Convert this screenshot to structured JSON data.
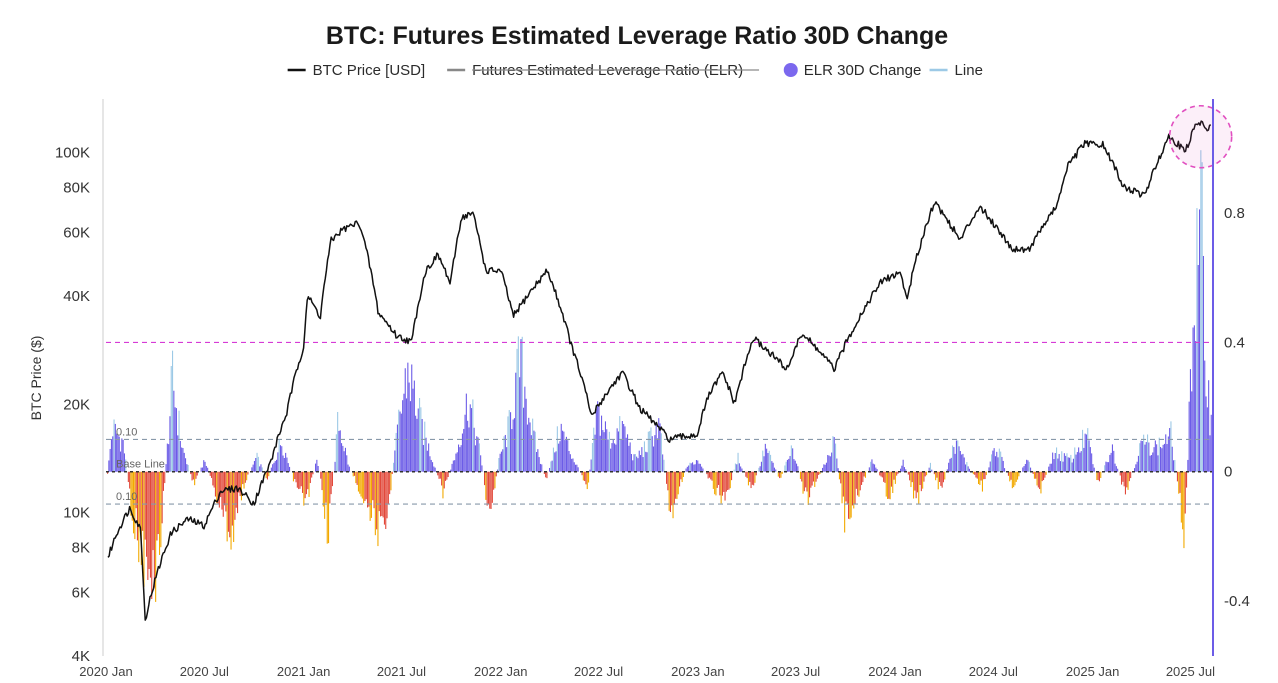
{
  "chart_data": {
    "type": "line+bar",
    "title": "BTC: Futures Estimated Leverage Ratio 30D Change",
    "legend": {
      "placement": "top-center",
      "items": [
        {
          "label": "BTC Price [USD]",
          "kind": "line",
          "color": "#111111",
          "struck": false
        },
        {
          "label": "Futures Estimated Leverage Ratio (ELR)",
          "kind": "line",
          "color": "#888888",
          "struck": true
        },
        {
          "label": "ELR 30D Change",
          "kind": "dot",
          "color": "#7b68ee",
          "struck": false
        },
        {
          "label": "Line",
          "kind": "line",
          "color": "#9cc9e6",
          "struck": false
        }
      ]
    },
    "y_left": {
      "label": "BTC Price ($)",
      "scale": "log",
      "range": [
        4000,
        140000
      ],
      "ticks": [
        {
          "value": 4000,
          "label": "4K"
        },
        {
          "value": 6000,
          "label": "6K"
        },
        {
          "value": 8000,
          "label": "8K"
        },
        {
          "value": 10000,
          "label": "10K"
        },
        {
          "value": 20000,
          "label": "20K"
        },
        {
          "value": 40000,
          "label": "40K"
        },
        {
          "value": 60000,
          "label": "60K"
        },
        {
          "value": 80000,
          "label": "80K"
        },
        {
          "value": 100000,
          "label": "100K"
        }
      ]
    },
    "y_right": {
      "scale": "linear",
      "range": [
        -0.57,
        1.15
      ],
      "ticks": [
        {
          "value": -0.4,
          "label": "-0.4"
        },
        {
          "value": 0,
          "label": "0"
        },
        {
          "value": 0.4,
          "label": "0.4"
        },
        {
          "value": 0.8,
          "label": "0.8"
        }
      ]
    },
    "x_axis": {
      "range": [
        "2020-01-01",
        "2025-08-10"
      ],
      "ticks": [
        {
          "date": "2020-01-01",
          "label": "2020 Jan"
        },
        {
          "date": "2020-07-01",
          "label": "2020 Jul"
        },
        {
          "date": "2021-01-01",
          "label": "2021 Jan"
        },
        {
          "date": "2021-07-01",
          "label": "2021 Jul"
        },
        {
          "date": "2022-01-01",
          "label": "2022 Jan"
        },
        {
          "date": "2022-07-01",
          "label": "2022 Jul"
        },
        {
          "date": "2023-01-01",
          "label": "2023 Jan"
        },
        {
          "date": "2023-07-01",
          "label": "2023 Jul"
        },
        {
          "date": "2024-01-01",
          "label": "2024 Jan"
        },
        {
          "date": "2024-07-01",
          "label": "2024 Jul"
        },
        {
          "date": "2025-01-01",
          "label": "2025 Jan"
        },
        {
          "date": "2025-07-01",
          "label": "2025 Jul"
        }
      ]
    },
    "reference_lines": [
      {
        "value": 0.4,
        "style": "dashed",
        "color": "#d63bd6",
        "label": ""
      },
      {
        "value": 0.1,
        "style": "dashed",
        "color": "#8899aa",
        "label": "0.10"
      },
      {
        "value": 0,
        "style": "dashed",
        "color": "#333333",
        "label": "Base Line"
      },
      {
        "value": -0.1,
        "style": "dashed",
        "color": "#8899aa",
        "label": "0.10"
      }
    ],
    "highlight": {
      "date": "2025-07-20",
      "value": 115000,
      "shape": "dashed-circle",
      "color": "#e14fc0"
    },
    "colors": {
      "price": "#111111",
      "positive": "#6c5ce7",
      "positive_edge": "#9cc9e6",
      "negative": "#e2483a",
      "negative_edge": "#f2a900"
    },
    "series": [
      {
        "name": "BTC Price [USD]",
        "points": [
          [
            "2020-01-01",
            7200
          ],
          [
            "2020-01-20",
            8700
          ],
          [
            "2020-02-14",
            10300
          ],
          [
            "2020-03-05",
            9000
          ],
          [
            "2020-03-13",
            5000
          ],
          [
            "2020-04-01",
            6500
          ],
          [
            "2020-05-01",
            8800
          ],
          [
            "2020-06-01",
            9600
          ],
          [
            "2020-07-01",
            9200
          ],
          [
            "2020-08-01",
            11500
          ],
          [
            "2020-09-01",
            11700
          ],
          [
            "2020-10-01",
            10600
          ],
          [
            "2020-11-01",
            13800
          ],
          [
            "2020-12-01",
            19000
          ],
          [
            "2021-01-01",
            29000
          ],
          [
            "2021-01-08",
            40000
          ],
          [
            "2021-02-01",
            35000
          ],
          [
            "2021-02-21",
            57000
          ],
          [
            "2021-03-13",
            61000
          ],
          [
            "2021-04-14",
            64000
          ],
          [
            "2021-05-19",
            36000
          ],
          [
            "2021-06-22",
            31000
          ],
          [
            "2021-07-20",
            29800
          ],
          [
            "2021-08-15",
            47000
          ],
          [
            "2021-09-07",
            52000
          ],
          [
            "2021-09-30",
            43000
          ],
          [
            "2021-10-20",
            66000
          ],
          [
            "2021-11-10",
            68000
          ],
          [
            "2021-12-04",
            47000
          ],
          [
            "2022-01-01",
            47000
          ],
          [
            "2022-01-24",
            35000
          ],
          [
            "2022-03-28",
            47000
          ],
          [
            "2022-05-12",
            29000
          ],
          [
            "2022-06-18",
            18500
          ],
          [
            "2022-08-14",
            24500
          ],
          [
            "2022-09-15",
            19500
          ],
          [
            "2022-11-09",
            16000
          ],
          [
            "2022-12-31",
            16500
          ],
          [
            "2023-01-20",
            21000
          ],
          [
            "2023-02-16",
            24500
          ],
          [
            "2023-03-10",
            20000
          ],
          [
            "2023-04-14",
            30500
          ],
          [
            "2023-06-15",
            25000
          ],
          [
            "2023-07-13",
            31500
          ],
          [
            "2023-09-11",
            25000
          ],
          [
            "2023-10-25",
            34500
          ],
          [
            "2023-12-08",
            44000
          ],
          [
            "2024-01-11",
            46500
          ],
          [
            "2024-01-23",
            39000
          ],
          [
            "2024-03-14",
            73000
          ],
          [
            "2024-05-01",
            57000
          ],
          [
            "2024-06-05",
            71000
          ],
          [
            "2024-08-05",
            54000
          ],
          [
            "2024-09-06",
            54000
          ],
          [
            "2024-10-29",
            72000
          ],
          [
            "2024-11-13",
            90000
          ],
          [
            "2024-12-17",
            106000
          ],
          [
            "2025-01-20",
            105000
          ],
          [
            "2025-02-28",
            80000
          ],
          [
            "2025-04-08",
            76000
          ],
          [
            "2025-05-22",
            111000
          ],
          [
            "2025-06-22",
            101000
          ],
          [
            "2025-07-14",
            122000
          ],
          [
            "2025-07-28",
            118000
          ],
          [
            "2025-08-08",
            117000
          ]
        ]
      },
      {
        "name": "ELR 30D Change",
        "points": [
          [
            "2020-01-01",
            -0.05
          ],
          [
            "2020-01-12",
            0.18
          ],
          [
            "2020-02-01",
            0.12
          ],
          [
            "2020-02-18",
            -0.18
          ],
          [
            "2020-03-13",
            -0.38
          ],
          [
            "2020-03-25",
            -0.5
          ],
          [
            "2020-04-12",
            -0.22
          ],
          [
            "2020-05-02",
            0.38
          ],
          [
            "2020-05-20",
            0.1
          ],
          [
            "2020-06-10",
            -0.05
          ],
          [
            "2020-07-01",
            0.05
          ],
          [
            "2020-07-25",
            -0.12
          ],
          [
            "2020-08-20",
            -0.26
          ],
          [
            "2020-09-10",
            -0.06
          ],
          [
            "2020-10-05",
            0.06
          ],
          [
            "2020-10-25",
            -0.03
          ],
          [
            "2020-11-20",
            0.13
          ],
          [
            "2020-12-15",
            -0.05
          ],
          [
            "2021-01-05",
            -0.12
          ],
          [
            "2021-01-25",
            0.06
          ],
          [
            "2021-02-15",
            -0.25
          ],
          [
            "2021-03-05",
            0.21
          ],
          [
            "2021-03-25",
            0.02
          ],
          [
            "2021-04-20",
            -0.1
          ],
          [
            "2021-05-10",
            -0.18
          ],
          [
            "2021-05-28",
            -0.3
          ],
          [
            "2021-06-25",
            0.2
          ],
          [
            "2021-07-12",
            0.42
          ],
          [
            "2021-08-05",
            0.2
          ],
          [
            "2021-08-25",
            0.06
          ],
          [
            "2021-09-15",
            -0.08
          ],
          [
            "2021-10-10",
            0.08
          ],
          [
            "2021-11-01",
            0.3
          ],
          [
            "2021-11-25",
            0.05
          ],
          [
            "2021-12-10",
            -0.2
          ],
          [
            "2021-12-28",
            0.05
          ],
          [
            "2022-01-15",
            0.18
          ],
          [
            "2022-02-05",
            0.46
          ],
          [
            "2022-03-01",
            0.15
          ],
          [
            "2022-03-25",
            -0.04
          ],
          [
            "2022-04-20",
            0.18
          ],
          [
            "2022-05-15",
            0.05
          ],
          [
            "2022-06-10",
            -0.06
          ],
          [
            "2022-06-28",
            0.25
          ],
          [
            "2022-07-20",
            0.13
          ],
          [
            "2022-08-15",
            0.18
          ],
          [
            "2022-09-05",
            0.05
          ],
          [
            "2022-09-25",
            0.1
          ],
          [
            "2022-10-20",
            0.2
          ],
          [
            "2022-11-10",
            -0.17
          ],
          [
            "2022-12-10",
            0.02
          ],
          [
            "2023-01-01",
            0.05
          ],
          [
            "2023-01-25",
            -0.05
          ],
          [
            "2023-02-20",
            -0.12
          ],
          [
            "2023-03-15",
            0.06
          ],
          [
            "2023-04-10",
            -0.08
          ],
          [
            "2023-05-05",
            0.1
          ],
          [
            "2023-06-01",
            -0.03
          ],
          [
            "2023-06-25",
            0.1
          ],
          [
            "2023-07-20",
            -0.12
          ],
          [
            "2023-08-20",
            0.02
          ],
          [
            "2023-09-10",
            0.12
          ],
          [
            "2023-09-30",
            -0.2
          ],
          [
            "2023-10-25",
            -0.08
          ],
          [
            "2023-11-20",
            0.05
          ],
          [
            "2023-12-20",
            -0.1
          ],
          [
            "2024-01-15",
            0.04
          ],
          [
            "2024-02-10",
            -0.12
          ],
          [
            "2024-03-05",
            0.03
          ],
          [
            "2024-03-25",
            -0.08
          ],
          [
            "2024-04-20",
            0.12
          ],
          [
            "2024-05-15",
            0.02
          ],
          [
            "2024-06-10",
            -0.06
          ],
          [
            "2024-07-05",
            0.11
          ],
          [
            "2024-08-05",
            -0.06
          ],
          [
            "2024-09-01",
            0.05
          ],
          [
            "2024-09-25",
            -0.08
          ],
          [
            "2024-10-20",
            0.08
          ],
          [
            "2024-11-20",
            0.05
          ],
          [
            "2024-12-20",
            0.15
          ],
          [
            "2025-01-10",
            -0.05
          ],
          [
            "2025-02-05",
            0.1
          ],
          [
            "2025-03-01",
            -0.1
          ],
          [
            "2025-04-01",
            0.12
          ],
          [
            "2025-05-01",
            0.1
          ],
          [
            "2025-05-25",
            0.15
          ],
          [
            "2025-06-20",
            -0.26
          ],
          [
            "2025-07-01",
            0.45
          ],
          [
            "2025-07-10",
            0.75
          ],
          [
            "2025-07-20",
            1.05
          ],
          [
            "2025-07-28",
            0.45
          ],
          [
            "2025-08-05",
            0.25
          ]
        ]
      }
    ]
  }
}
